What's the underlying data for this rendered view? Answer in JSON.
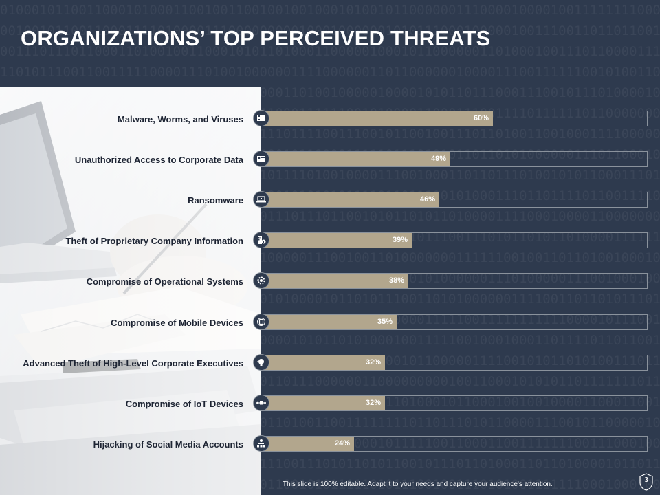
{
  "title": "ORGANIZATIONS’ TOP PERCEIVED THREATS",
  "footer_text": "This slide is 100% editable. Adapt it to your needs and capture your audience's attention.",
  "page_number": "3",
  "colors": {
    "background": "#2e3a4e",
    "bar_fill": "#b2a68d",
    "bar_border": "#8a929c",
    "label_text": "#1d2433"
  },
  "chart_data": {
    "type": "bar",
    "orientation": "horizontal",
    "xlim": [
      0,
      100
    ],
    "grid": false,
    "categories": [
      "Malware, Worms, and Viruses",
      "Unauthorized Access to Corporate Data",
      "Ransomware",
      "Theft of Proprietary Company Information",
      "Compromise of Operational Systems",
      "Compromise of Mobile Devices",
      "Advanced Theft of High-Level Corporate Executives",
      "Compromise of IoT Devices",
      "Hijacking of Social Media Accounts"
    ],
    "values": [
      60,
      49,
      46,
      39,
      38,
      35,
      32,
      32,
      24
    ],
    "value_labels": [
      "60%",
      "49%",
      "46%",
      "39%",
      "38%",
      "35%",
      "32%",
      "32%",
      "24%"
    ],
    "icons": [
      "server-bug-icon",
      "id-card-icon",
      "laptop-lock-icon",
      "building-id-icon",
      "gear-icon",
      "mobile-devices-icon",
      "executive-bulb-icon",
      "iot-node-icon",
      "social-network-icon"
    ]
  }
}
